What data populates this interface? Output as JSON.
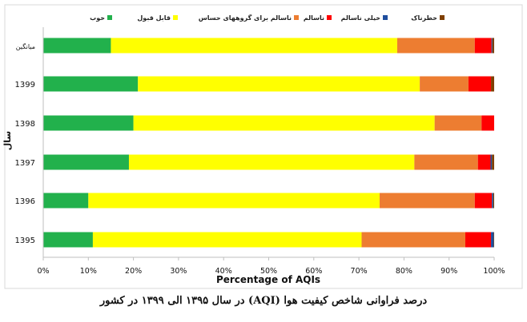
{
  "chart_data": {
    "type": "bar",
    "orientation": "horizontal",
    "stacked": true,
    "categories": [
      "میانگین",
      "1399",
      "1398",
      "1397",
      "1396",
      "1395"
    ],
    "series": [
      {
        "name": "خوب",
        "color": "#22b14c",
        "values": [
          15,
          21,
          20,
          19,
          10,
          11
        ]
      },
      {
        "name": "قابل قبول",
        "color": "#ffff00",
        "values": [
          63.5,
          62.5,
          66.8,
          63.3,
          64.6,
          59.6
        ]
      },
      {
        "name": "ناسالم برای گروههای حساس",
        "color": "#ed7d31",
        "values": [
          17.2,
          10.8,
          10.4,
          14.1,
          21.1,
          23
        ]
      },
      {
        "name": "ناسالم",
        "color": "#ff0000",
        "values": [
          3.7,
          5.0,
          2.8,
          2.8,
          3.8,
          5.7
        ]
      },
      {
        "name": "خیلی ناسالم",
        "color": "#1f4e9e",
        "values": [
          0.2,
          0,
          0,
          0.3,
          0.3,
          0.6
        ]
      },
      {
        "name": "خطرناک",
        "color": "#7f3f00",
        "values": [
          0.4,
          0.7,
          0,
          0.5,
          0.2,
          0.1
        ]
      }
    ],
    "xlabel": "Percentage of AQIs",
    "ylabel": "سال",
    "xlim": [
      0,
      100
    ],
    "xticks": [
      "0%",
      "10%",
      "20%",
      "30%",
      "40%",
      "50%",
      "60%",
      "70%",
      "80%",
      "90%",
      "100%"
    ],
    "legend_position": "top",
    "grid": false
  },
  "caption": "درصد فراوانی شاخص کیفیت هوا (AQI) در سال ۱۳۹۵ الی ۱۳۹۹ در کشور"
}
